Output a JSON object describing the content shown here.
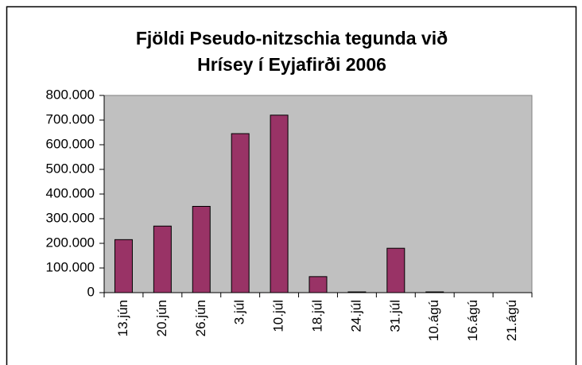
{
  "chart_data": {
    "type": "bar",
    "title": [
      "Fjöldi Pseudo-nitzschia tegunda við",
      "Hrísey í Eyjafirði 2006"
    ],
    "categories": [
      "13.jún",
      "20.jún",
      "26.jún",
      "3.júl",
      "10.júl",
      "18.júl",
      "24.júl",
      "31.júl",
      "10.ágú",
      "16.ágú",
      "21.ágú"
    ],
    "values": [
      215000,
      270000,
      350000,
      645000,
      720000,
      65000,
      3000,
      180000,
      3000,
      0,
      0
    ],
    "color": "#993366",
    "ylim": [
      0,
      800000
    ],
    "yticks": [
      0,
      {
        "value": 100000,
        "label": "100.000"
      },
      {
        "value": 200000,
        "label": "200.000"
      },
      {
        "value": 300000,
        "label": "300.000"
      },
      {
        "value": 400000,
        "label": "400.000"
      },
      {
        "value": 500000,
        "label": "500.000"
      },
      {
        "value": 600000,
        "label": "600.000"
      },
      {
        "value": 700000,
        "label": "700.000"
      },
      {
        "value": 800000,
        "label": "800.000"
      }
    ],
    "grid": false
  }
}
